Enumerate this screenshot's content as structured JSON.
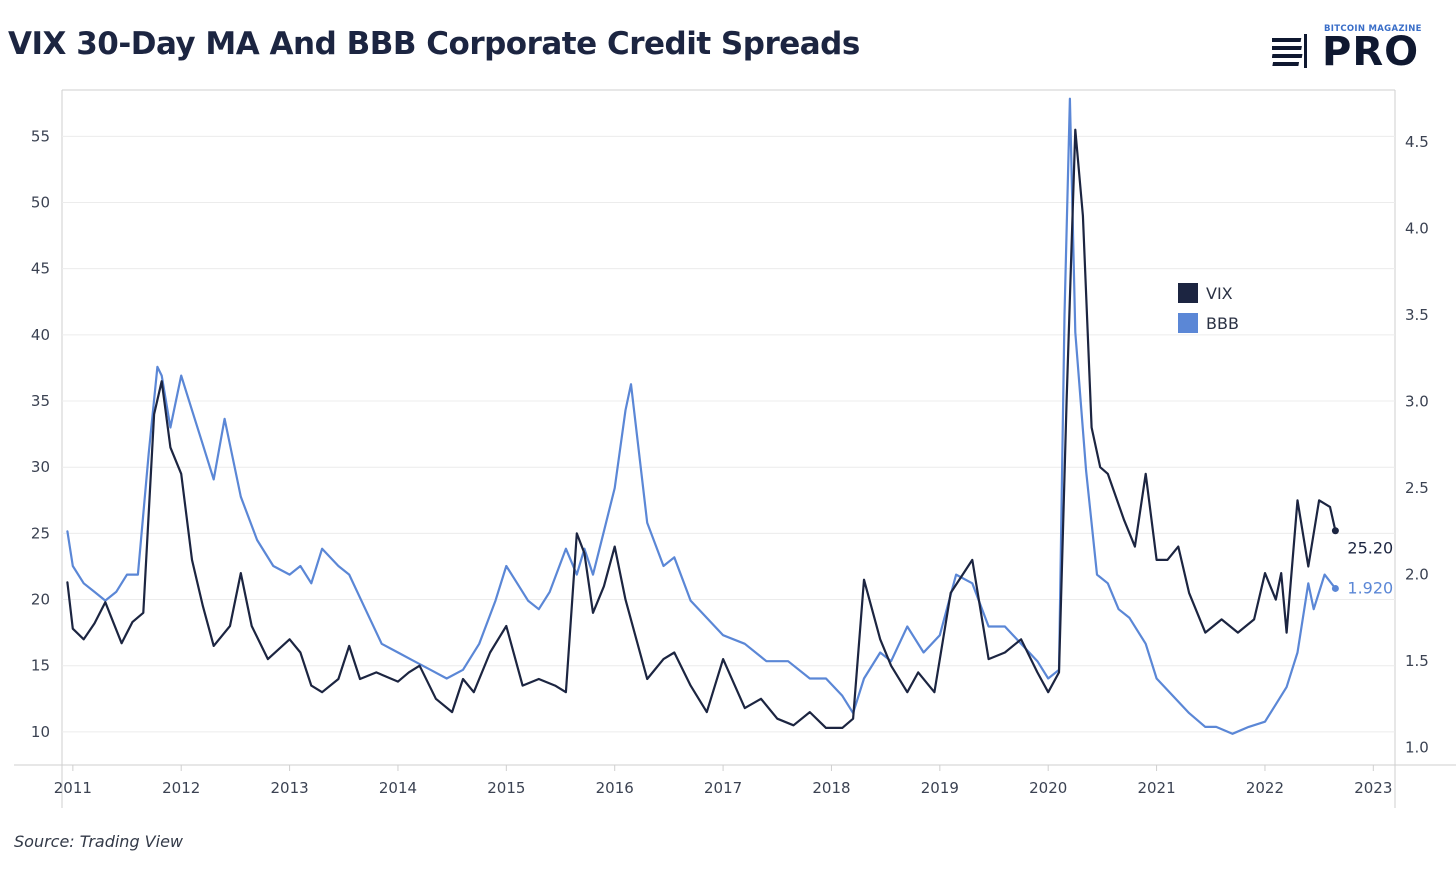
{
  "title": "VIX 30-Day MA And BBB Corporate Credit Spreads",
  "brand": {
    "small_text": "BITCOIN MAGAZINE",
    "big_text": "PRO"
  },
  "source": "Source: Trading View",
  "colors": {
    "vix": "#1c2541",
    "bbb": "#5b87d6",
    "grid": "#ececec",
    "frame": "#cfcfcf"
  },
  "chart_data": {
    "type": "line",
    "title": "VIX 30-Day MA And BBB Corporate Credit Spreads",
    "x_ticks": [
      "2011",
      "2012",
      "2013",
      "2014",
      "2015",
      "2016",
      "2017",
      "2018",
      "2019",
      "2020",
      "2021",
      "2022",
      "2023"
    ],
    "xlim": [
      2010.9,
      2023.2
    ],
    "left_axis": {
      "ticks": [
        10,
        15,
        20,
        25,
        30,
        35,
        40,
        45,
        50,
        55
      ],
      "ylim": [
        7.5,
        58.5
      ]
    },
    "right_axis": {
      "ticks": [
        "1.0",
        "1.5",
        "2.0",
        "2.5",
        "3.0",
        "3.5",
        "4.0",
        "4.5"
      ],
      "ylim": [
        0.9,
        4.8
      ]
    },
    "grid": true,
    "legend": {
      "placement": "center-right",
      "items": [
        "VIX",
        "BBB"
      ]
    },
    "last_value_labels": {
      "vix": "25.20",
      "bbb": "1.920"
    },
    "series": [
      {
        "name": "VIX",
        "axis": "left",
        "x": [
          2010.95,
          2011.0,
          2011.1,
          2011.2,
          2011.3,
          2011.45,
          2011.55,
          2011.65,
          2011.75,
          2011.82,
          2011.9,
          2012.0,
          2012.1,
          2012.2,
          2012.3,
          2012.45,
          2012.55,
          2012.65,
          2012.8,
          2013.0,
          2013.1,
          2013.2,
          2013.3,
          2013.45,
          2013.55,
          2013.65,
          2013.8,
          2014.0,
          2014.1,
          2014.2,
          2014.35,
          2014.5,
          2014.6,
          2014.7,
          2014.85,
          2015.0,
          2015.15,
          2015.3,
          2015.45,
          2015.55,
          2015.65,
          2015.72,
          2015.8,
          2015.9,
          2016.0,
          2016.1,
          2016.3,
          2016.45,
          2016.55,
          2016.7,
          2016.85,
          2017.0,
          2017.2,
          2017.35,
          2017.5,
          2017.65,
          2017.8,
          2017.95,
          2018.1,
          2018.2,
          2018.3,
          2018.45,
          2018.55,
          2018.7,
          2018.8,
          2018.95,
          2019.1,
          2019.3,
          2019.45,
          2019.6,
          2019.75,
          2019.9,
          2020.0,
          2020.1,
          2020.17,
          2020.25,
          2020.32,
          2020.4,
          2020.48,
          2020.55,
          2020.7,
          2020.8,
          2020.9,
          2021.0,
          2021.1,
          2021.2,
          2021.3,
          2021.45,
          2021.6,
          2021.75,
          2021.9,
          2022.0,
          2022.1,
          2022.15,
          2022.2,
          2022.3,
          2022.4,
          2022.5,
          2022.6,
          2022.65
        ],
        "y": [
          21.3,
          17.8,
          17.0,
          18.2,
          19.8,
          16.7,
          18.3,
          19.0,
          34.0,
          36.5,
          31.5,
          29.5,
          23.0,
          19.5,
          16.5,
          18.0,
          22.0,
          18.0,
          15.5,
          17.0,
          16.0,
          13.5,
          13.0,
          14.0,
          16.5,
          14.0,
          14.5,
          13.8,
          14.5,
          15.0,
          12.5,
          11.5,
          14.0,
          13.0,
          16.0,
          18.0,
          13.5,
          14.0,
          13.5,
          13.0,
          25.0,
          23.5,
          19.0,
          21.0,
          24.0,
          20.0,
          14.0,
          15.5,
          16.0,
          13.5,
          11.5,
          15.5,
          11.8,
          12.5,
          11.0,
          10.5,
          11.5,
          10.3,
          10.3,
          11.0,
          21.5,
          17.0,
          15.0,
          13.0,
          14.5,
          13.0,
          20.5,
          23.0,
          15.5,
          16.0,
          17.0,
          14.5,
          13.0,
          14.5,
          35.0,
          55.5,
          49.0,
          33.0,
          30.0,
          29.5,
          26.0,
          24.0,
          29.5,
          23.0,
          23.0,
          24.0,
          20.5,
          17.5,
          18.5,
          17.5,
          18.5,
          22.0,
          20.0,
          22.0,
          17.5,
          27.5,
          22.5,
          27.5,
          27.0,
          25.2
        ]
      },
      {
        "name": "BBB",
        "axis": "right",
        "x": [
          2010.95,
          2011.0,
          2011.1,
          2011.2,
          2011.3,
          2011.4,
          2011.5,
          2011.6,
          2011.7,
          2011.78,
          2011.82,
          2011.9,
          2012.0,
          2012.1,
          2012.2,
          2012.3,
          2012.4,
          2012.45,
          2012.55,
          2012.7,
          2012.85,
          2013.0,
          2013.1,
          2013.2,
          2013.3,
          2013.45,
          2013.55,
          2013.7,
          2013.85,
          2014.0,
          2014.15,
          2014.3,
          2014.45,
          2014.6,
          2014.75,
          2014.9,
          2015.0,
          2015.1,
          2015.2,
          2015.3,
          2015.4,
          2015.55,
          2015.65,
          2015.72,
          2015.8,
          2015.9,
          2016.0,
          2016.1,
          2016.15,
          2016.3,
          2016.45,
          2016.55,
          2016.7,
          2016.85,
          2017.0,
          2017.2,
          2017.4,
          2017.6,
          2017.8,
          2017.95,
          2018.1,
          2018.2,
          2018.3,
          2018.45,
          2018.55,
          2018.7,
          2018.85,
          2019.0,
          2019.15,
          2019.3,
          2019.45,
          2019.6,
          2019.75,
          2019.9,
          2020.0,
          2020.1,
          2020.15,
          2020.2,
          2020.25,
          2020.3,
          2020.35,
          2020.45,
          2020.55,
          2020.65,
          2020.75,
          2020.9,
          2021.0,
          2021.15,
          2021.3,
          2021.45,
          2021.55,
          2021.7,
          2021.85,
          2022.0,
          2022.1,
          2022.2,
          2022.3,
          2022.4,
          2022.45,
          2022.55,
          2022.65
        ],
        "y": [
          2.25,
          2.05,
          1.95,
          1.9,
          1.85,
          1.9,
          2.0,
          2.0,
          2.7,
          3.2,
          3.15,
          2.85,
          3.15,
          2.95,
          2.75,
          2.55,
          2.9,
          2.75,
          2.45,
          2.2,
          2.05,
          2.0,
          2.05,
          1.95,
          2.15,
          2.05,
          2.0,
          1.8,
          1.6,
          1.55,
          1.5,
          1.45,
          1.4,
          1.45,
          1.6,
          1.85,
          2.05,
          1.95,
          1.85,
          1.8,
          1.9,
          2.15,
          2.0,
          2.15,
          2.0,
          2.25,
          2.5,
          2.95,
          3.1,
          2.3,
          2.05,
          2.1,
          1.85,
          1.75,
          1.65,
          1.6,
          1.5,
          1.5,
          1.4,
          1.4,
          1.3,
          1.2,
          1.4,
          1.55,
          1.5,
          1.7,
          1.55,
          1.65,
          2.0,
          1.95,
          1.7,
          1.7,
          1.6,
          1.5,
          1.4,
          1.45,
          3.5,
          4.75,
          3.4,
          3.0,
          2.6,
          2.0,
          1.95,
          1.8,
          1.75,
          1.6,
          1.4,
          1.3,
          1.2,
          1.12,
          1.12,
          1.08,
          1.12,
          1.15,
          1.25,
          1.35,
          1.55,
          1.95,
          1.8,
          2.0,
          1.92
        ]
      }
    ]
  }
}
